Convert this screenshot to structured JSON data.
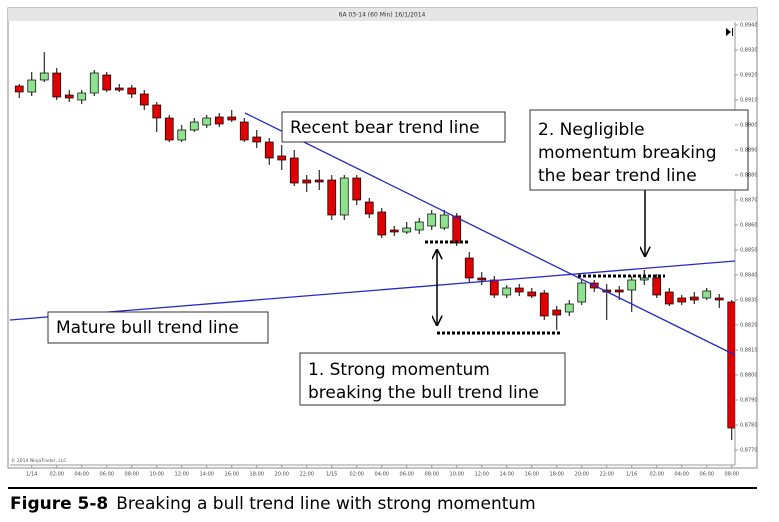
{
  "chart_data": {
    "type": "candlestick",
    "title": "6A 03-14 (60 Min) 16/1/2014",
    "watermark": "© 2014 NinjaTrader, LLC",
    "up_color": "#8fe08f",
    "down_color": "#e00000",
    "categories": [
      null,
      "1/14",
      null,
      "02:00",
      null,
      "04:00",
      null,
      "06:00",
      null,
      "08:00",
      null,
      "10:00",
      null,
      "12:00",
      null,
      "14:00",
      null,
      "16:00",
      null,
      "18:00",
      null,
      "20:00",
      null,
      "22:00",
      null,
      "1/15",
      null,
      "02:00",
      null,
      "04:00",
      null,
      "06:00",
      null,
      "08:00",
      null,
      "10:00",
      null,
      "12:00",
      null,
      "14:00",
      null,
      "16:00",
      null,
      "18:00",
      null,
      "20:00",
      null,
      "22:00",
      null,
      "1/16",
      null,
      "02:00",
      null,
      "04:00",
      null,
      "06:00",
      null,
      "08:00"
    ],
    "open": [
      0.89156,
      0.89132,
      0.8918,
      0.89208,
      0.8912,
      0.891,
      0.89128,
      0.892,
      0.89148,
      0.89148,
      0.89124,
      0.8908,
      0.89028,
      0.8894,
      0.8898,
      0.89,
      0.89032,
      0.89032,
      0.89012,
      0.88952,
      0.88932,
      0.88876,
      0.88868,
      0.8878,
      0.8878,
      0.8878,
      0.8864,
      0.88788,
      0.88692,
      0.88652,
      0.8858,
      0.88572,
      0.8858,
      0.88596,
      0.88588,
      0.88636,
      0.88468,
      0.88388,
      0.8838,
      0.8832,
      0.88348,
      0.88332,
      0.88328,
      0.8826,
      0.88252,
      0.88292,
      0.88368,
      0.8834,
      0.8834,
      0.8834,
      0.8838,
      0.88388,
      0.88332,
      0.88308,
      0.88312,
      0.88308,
      0.88308,
      0.88292
    ],
    "high": [
      0.89164,
      0.89212,
      0.89292,
      0.89228,
      0.8914,
      0.8914,
      0.8922,
      0.89212,
      0.89164,
      0.8916,
      0.8914,
      0.89092,
      0.8904,
      0.89,
      0.89028,
      0.8904,
      0.89048,
      0.8906,
      0.89028,
      0.8898,
      0.88948,
      0.8892,
      0.889,
      0.888,
      0.8882,
      0.888,
      0.888,
      0.888,
      0.88708,
      0.88668,
      0.88596,
      0.88612,
      0.88628,
      0.8866,
      0.8866,
      0.88648,
      0.88492,
      0.88412,
      0.88396,
      0.8836,
      0.88364,
      0.88348,
      0.8834,
      0.88276,
      0.883,
      0.8838,
      0.8838,
      0.88364,
      0.88356,
      0.88396,
      0.8842,
      0.88404,
      0.88348,
      0.8832,
      0.88332,
      0.88348,
      0.88324,
      0.883
    ],
    "low": [
      0.89108,
      0.89116,
      0.89172,
      0.891,
      0.89092,
      0.89084,
      0.89116,
      0.89132,
      0.89132,
      0.89108,
      0.8906,
      0.88972,
      0.88932,
      0.88932,
      0.88972,
      0.88988,
      0.88992,
      0.89012,
      0.88932,
      0.88908,
      0.8884,
      0.8882,
      0.88756,
      0.88732,
      0.8874,
      0.8862,
      0.8862,
      0.8868,
      0.88628,
      0.88548,
      0.88556,
      0.88564,
      0.88564,
      0.8858,
      0.8858,
      0.88516,
      0.88372,
      0.8836,
      0.88308,
      0.88308,
      0.88316,
      0.88308,
      0.8822,
      0.8818,
      0.88236,
      0.8828,
      0.88332,
      0.8822,
      0.883,
      0.88252,
      0.8836,
      0.88308,
      0.88276,
      0.8828,
      0.88284,
      0.883,
      0.88268,
      0.8774
    ],
    "close": [
      0.89132,
      0.8918,
      0.89208,
      0.89112,
      0.89108,
      0.89128,
      0.89208,
      0.8914,
      0.8914,
      0.89124,
      0.8908,
      0.89028,
      0.8894,
      0.8898,
      0.89012,
      0.89028,
      0.89004,
      0.8902,
      0.8894,
      0.88932,
      0.88868,
      0.8886,
      0.88768,
      0.88768,
      0.88772,
      0.8864,
      0.88788,
      0.887,
      0.88644,
      0.8856,
      0.88572,
      0.88588,
      0.88612,
      0.88644,
      0.8864,
      0.88528,
      0.88388,
      0.8838,
      0.8832,
      0.88348,
      0.88332,
      0.88316,
      0.88236,
      0.8824,
      0.88284,
      0.88368,
      0.88348,
      0.88332,
      0.88332,
      0.8838,
      0.88388,
      0.8832,
      0.88284,
      0.88292,
      0.883,
      0.88336,
      0.883,
      0.87788
    ],
    "ylim": [
      0.8764,
      0.89412
    ],
    "yticks": [
      {
        "value": 0.877,
        "label": "0.8770"
      },
      {
        "value": 0.878,
        "label": "0.8780"
      },
      {
        "value": 0.879,
        "label": "0.8790"
      },
      {
        "value": 0.88,
        "label": "0.8800"
      },
      {
        "value": 0.881,
        "label": "0.8810"
      },
      {
        "value": 0.882,
        "label": "0.8820"
      },
      {
        "value": 0.883,
        "label": "0.8830"
      },
      {
        "value": 0.884,
        "label": "0.8840"
      },
      {
        "value": 0.885,
        "label": "0.8850"
      },
      {
        "value": 0.886,
        "label": "0.8860"
      },
      {
        "value": 0.887,
        "label": "0.8870"
      },
      {
        "value": 0.888,
        "label": "0.8880"
      },
      {
        "value": 0.889,
        "label": "0.8890"
      },
      {
        "value": 0.89,
        "label": "0.8900"
      },
      {
        "value": 0.891,
        "label": "0.8910"
      },
      {
        "value": 0.892,
        "label": "0.8920"
      },
      {
        "value": 0.893,
        "label": "0.8930"
      },
      {
        "value": 0.894,
        "label": "0.8940"
      }
    ],
    "annotations": [
      {
        "lines": [
          "Recent bear trend line"
        ]
      },
      {
        "lines": [
          "2. Negligible",
          "momentum breaking",
          "the bear trend line"
        ]
      },
      {
        "lines": [
          "Mature bull trend line"
        ]
      },
      {
        "lines": [
          "1. Strong momentum",
          "breaking the bull trend line"
        ]
      }
    ]
  },
  "caption": {
    "label": "Figure 5-8",
    "text": "Breaking a bull trend line with strong momentum"
  }
}
